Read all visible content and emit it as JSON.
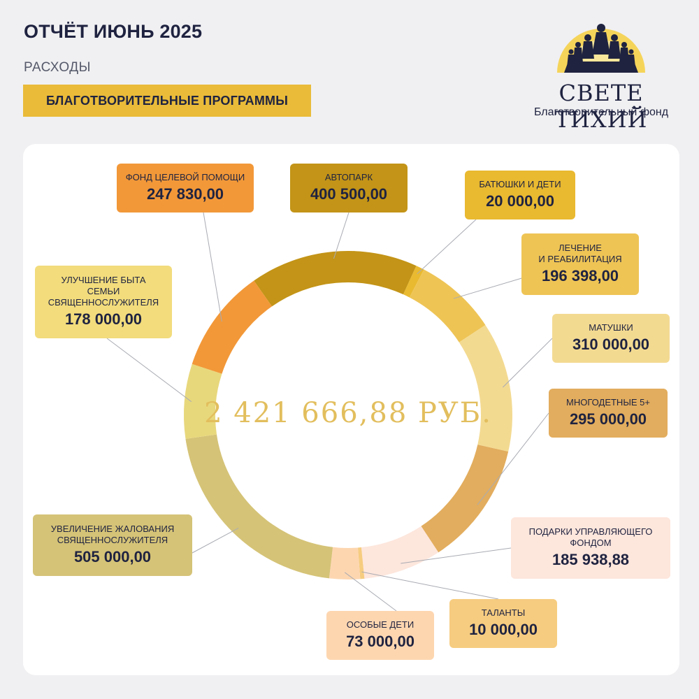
{
  "header": {
    "title": "ОТЧЁТ ИЮНЬ 2025",
    "subtitle": "РАСХОДЫ",
    "section": "БЛАГОТВОРИТЕЛЬНЫЕ ПРОГРАММЫ"
  },
  "logo": {
    "name": "СВЕТЕ ТИХИЙ",
    "caption": "Благотворительный фонд",
    "icon": "congregation-sunrise-icon"
  },
  "chart_data": {
    "type": "pie",
    "donut": true,
    "center_label": "2 421 666,88 РУБ.",
    "categories": [
      {
        "name": "АВТОПАРК",
        "value": 400500.0,
        "display": "400 500,00",
        "color": "#c39417",
        "label_color": "#c39417"
      },
      {
        "name": "БАТЮШКИ И ДЕТИ",
        "value": 20000.0,
        "display": "20 000,00",
        "color": "#e9b930",
        "label_color": "#e9b930"
      },
      {
        "name": "ЛЕЧЕНИЕ\nИ РЕАБИЛИТАЦИЯ",
        "value": 196398.0,
        "display": "196 398,00",
        "color": "#eec455",
        "label_color": "#eec455"
      },
      {
        "name": "МАТУШКИ",
        "value": 310000.0,
        "display": "310 000,00",
        "color": "#f3da91",
        "label_color": "#f3da91"
      },
      {
        "name": "МНОГОДЕТНЫЕ 5+",
        "value": 295000.0,
        "display": "295 000,00",
        "color": "#e2ad5e",
        "label_color": "#e2ad5e"
      },
      {
        "name": "ПОДАРКИ УПРАВЛЯЮЩЕГО\nФОНДОМ",
        "value": 185938.88,
        "display": "185 938,88",
        "color": "#fde6dc",
        "label_color": "#fde6dc"
      },
      {
        "name": "ТАЛАНТЫ",
        "value": 10000.0,
        "display": "10 000,00",
        "color": "#f6cc80",
        "label_color": "#f6cc80"
      },
      {
        "name": "ОСОБЫЕ ДЕТИ",
        "value": 73000.0,
        "display": "73 000,00",
        "color": "#fdd6b0",
        "label_color": "#fdd6b0"
      },
      {
        "name": "УВЕЛИЧЕНИЕ ЖАЛОВАНИЯ\nСВЯЩЕННОСЛУЖИТЕЛЯ",
        "value": 505000.0,
        "display": "505 000,00",
        "color": "#d5c377",
        "label_color": "#d5c377"
      },
      {
        "name": "УЛУЧШЕНИЕ БЫТА\nСЕМЬИ\nСВЯЩЕННОСЛУЖИТЕЛЯ",
        "value": 178000.0,
        "display": "178 000,00",
        "color": "#e8d87c",
        "label_color": "#f2dc7c"
      },
      {
        "name": "ФОНД ЦЕЛЕВОЙ ПОМОЩИ",
        "value": 247830.0,
        "display": "247 830,00",
        "color": "#f29838",
        "label_color": "#f29838"
      }
    ],
    "center_color": "#e2be5d"
  }
}
